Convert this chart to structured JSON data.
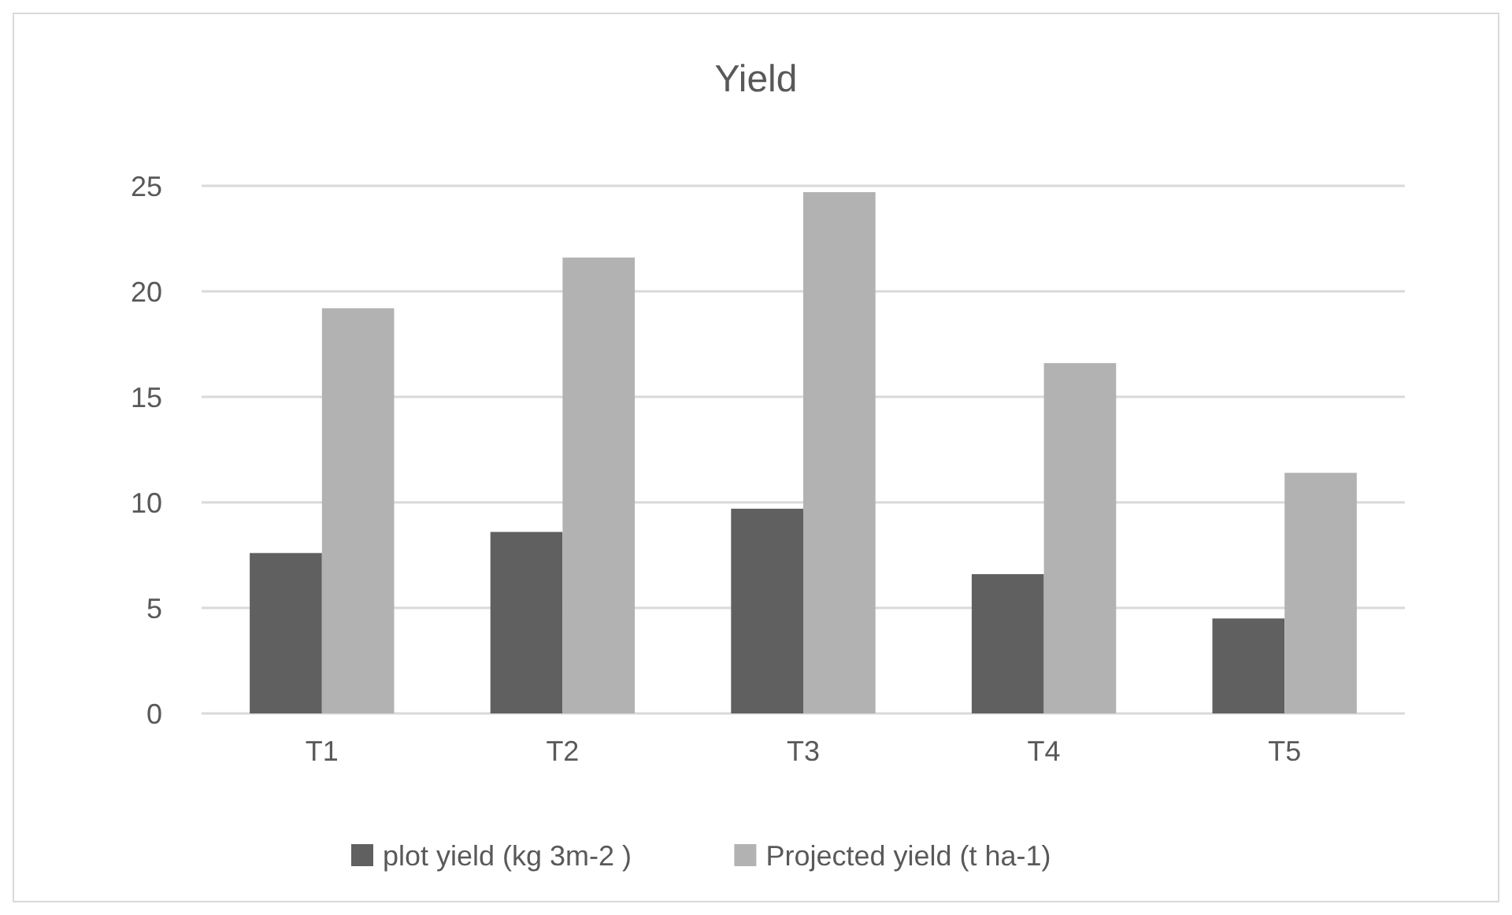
{
  "chart_data": {
    "type": "bar",
    "title": "Yield",
    "categories": [
      "T1",
      "T2",
      "T3",
      "T4",
      "T5"
    ],
    "series": [
      {
        "name": "plot yield (kg 3m-2 )",
        "color": "#606060",
        "values": [
          7.6,
          8.6,
          9.7,
          6.6,
          4.5
        ]
      },
      {
        "name": "Projected yield (t ha-1)",
        "color": "#b2b2b2",
        "values": [
          19.2,
          21.6,
          24.7,
          16.6,
          11.4
        ]
      }
    ],
    "ylim": [
      0,
      25
    ],
    "yticks": [
      0,
      5,
      10,
      15,
      20,
      25
    ],
    "grid": "y",
    "legend": "bottom"
  }
}
